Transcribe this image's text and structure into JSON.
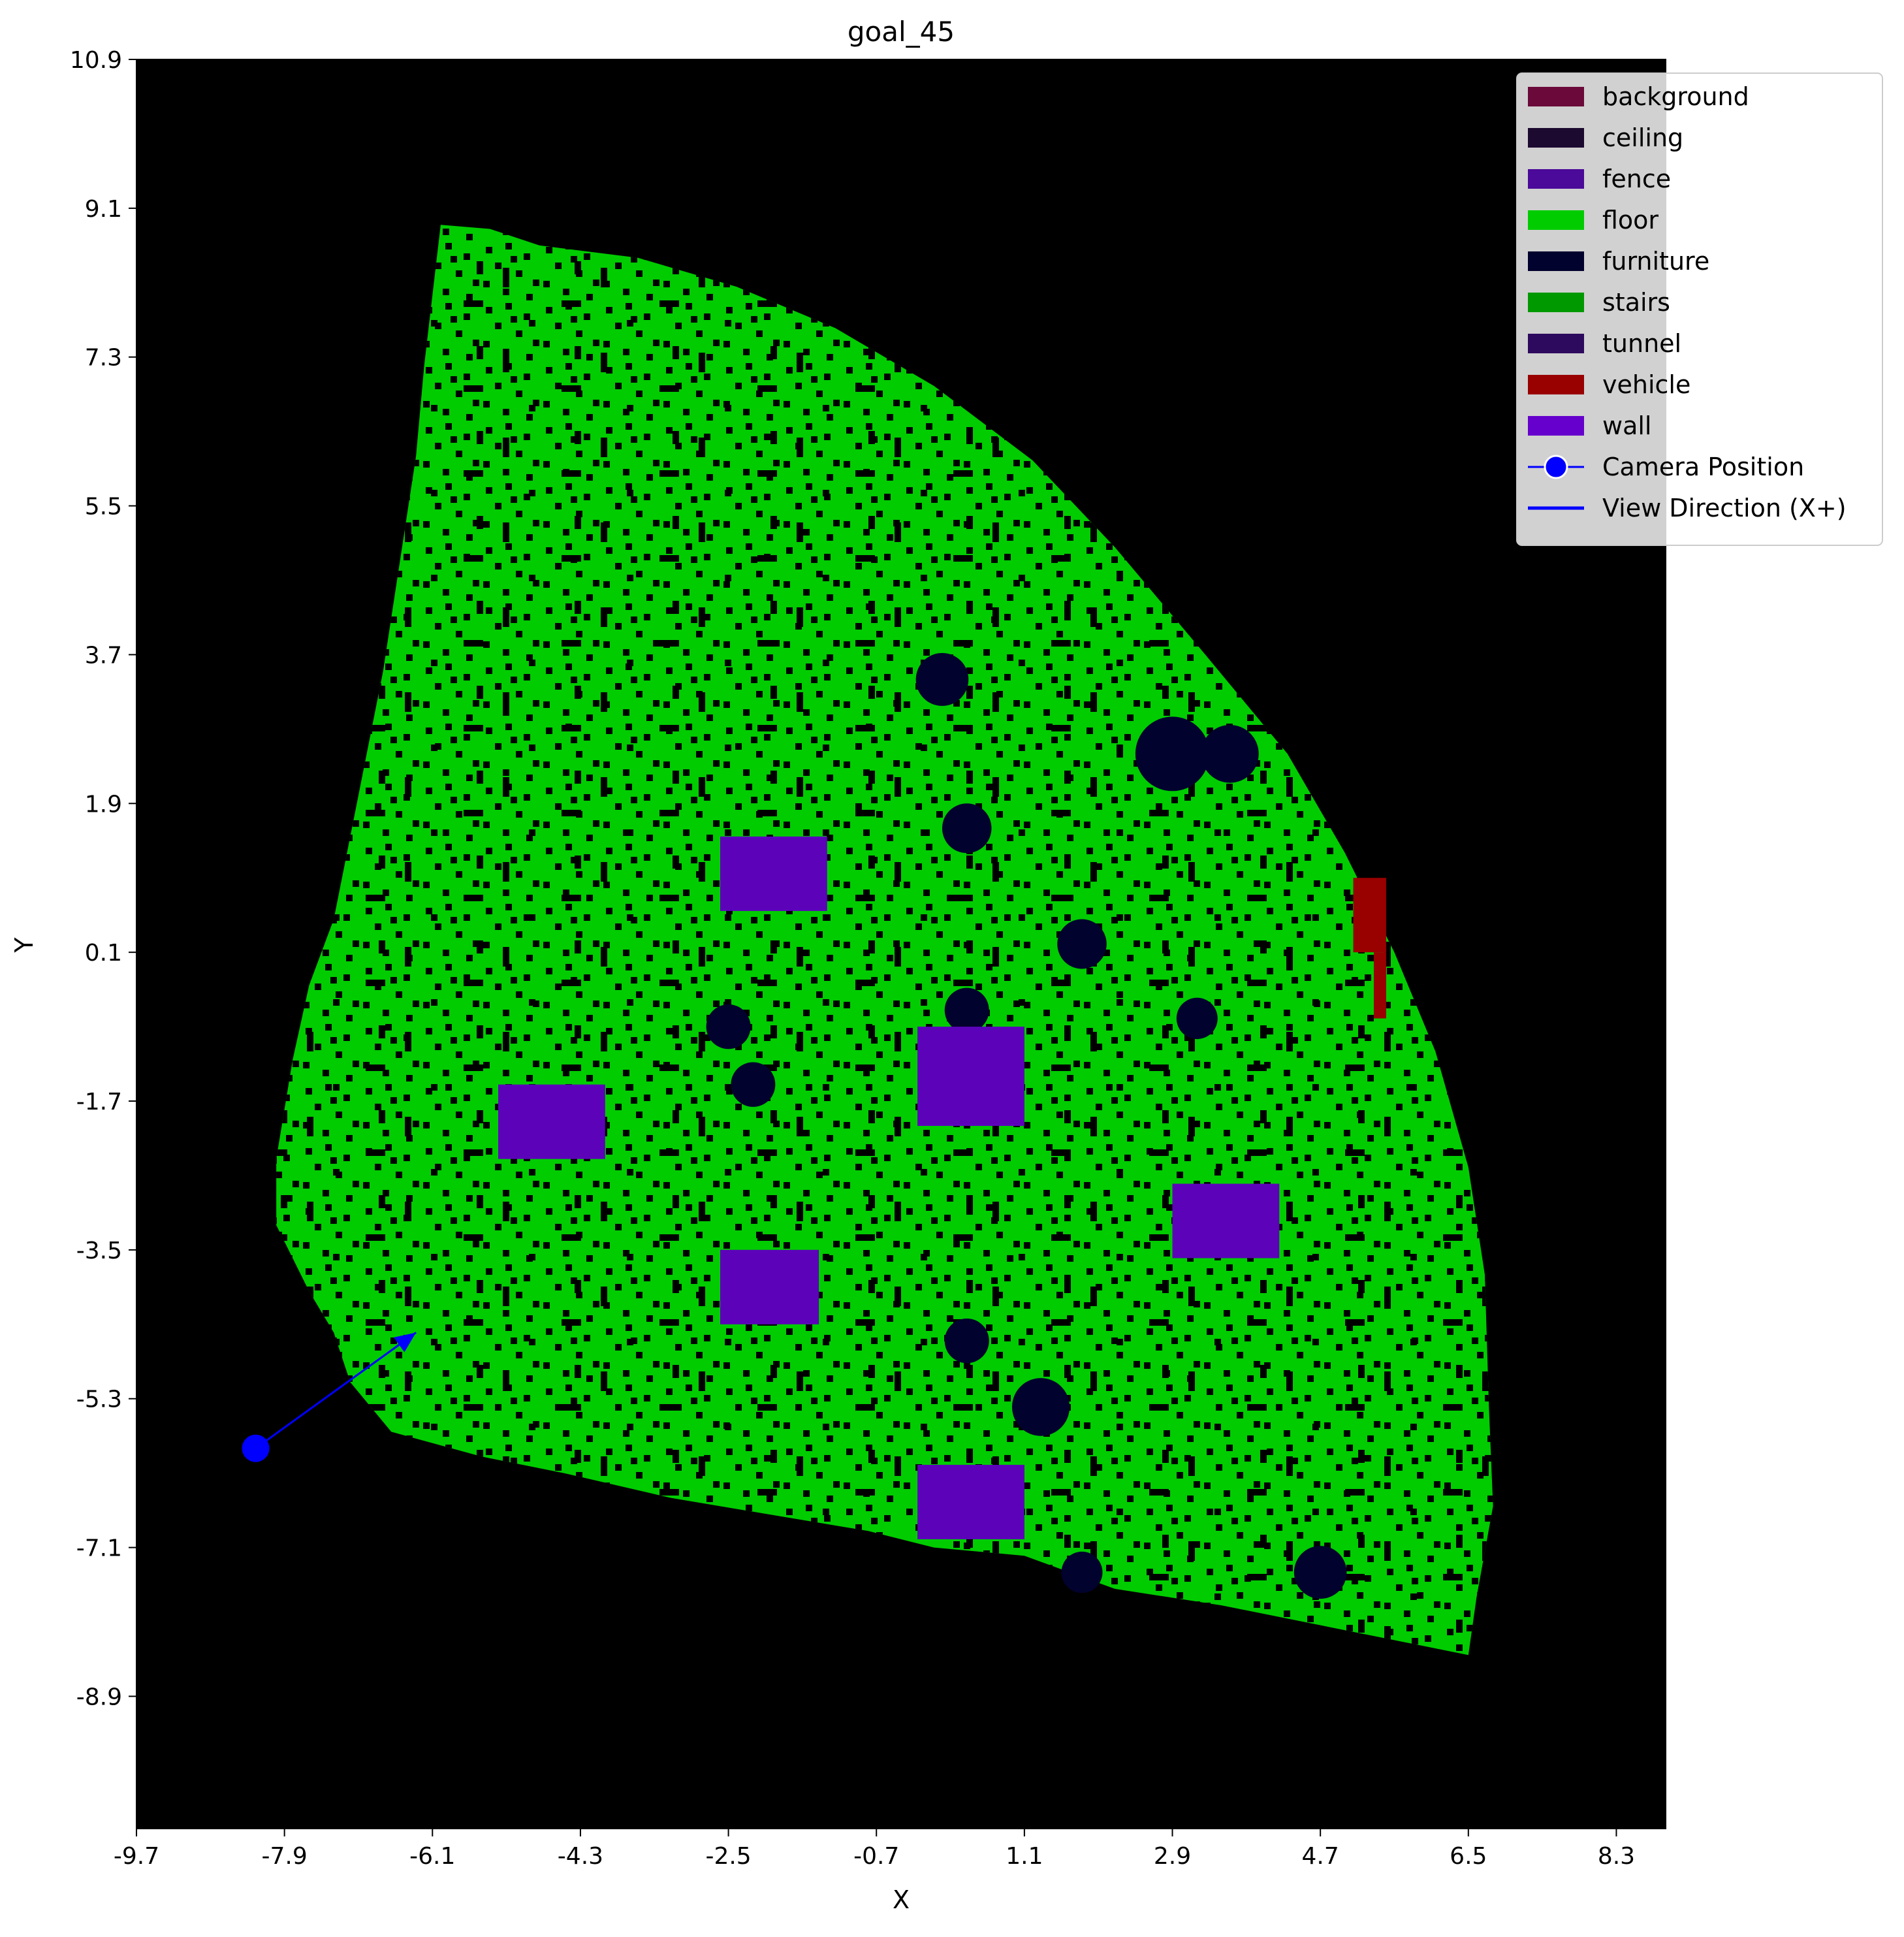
{
  "chart_data": {
    "type": "heatmap",
    "title": "goal_45",
    "xlabel": "X",
    "ylabel": "Y",
    "xlim": [
      -9.7,
      8.9
    ],
    "ylim": [
      -10.5,
      10.9
    ],
    "xticks": [
      -9.7,
      -7.9,
      -6.1,
      -4.3,
      -2.5,
      -0.7,
      1.1,
      2.9,
      4.7,
      6.5,
      8.3
    ],
    "yticks": [
      10.9,
      9.1,
      7.3,
      5.5,
      3.7,
      1.9,
      0.1,
      -1.7,
      -3.5,
      -5.3,
      -7.1,
      -8.9
    ],
    "xtick_labels": [
      "-9.7",
      "-7.9",
      "-6.1",
      "-4.3",
      "-2.5",
      "-0.7",
      "1.1",
      "2.9",
      "4.7",
      "6.5",
      "8.3"
    ],
    "ytick_labels": [
      "10.9",
      "9.1",
      "7.3",
      "5.5",
      "3.7",
      "1.9",
      "0.1",
      "-1.7",
      "-3.5",
      "-5.3",
      "-7.1",
      "-8.9"
    ],
    "grid": false,
    "background_color": "#000000",
    "legend_position": "top-right",
    "categories": [
      {
        "name": "background",
        "color": "#6b0a3a"
      },
      {
        "name": "ceiling",
        "color": "#1c0a30"
      },
      {
        "name": "fence",
        "color": "#4b0a99"
      },
      {
        "name": "floor",
        "color": "#00cc00"
      },
      {
        "name": "furniture",
        "color": "#02022e"
      },
      {
        "name": "stairs",
        "color": "#009900"
      },
      {
        "name": "tunnel",
        "color": "#2e0a5e"
      },
      {
        "name": "vehicle",
        "color": "#990000"
      },
      {
        "name": "wall",
        "color": "#6600cc"
      }
    ],
    "floor_region_outline": [
      [
        -6.0,
        8.9
      ],
      [
        -5.4,
        8.85
      ],
      [
        -4.8,
        8.65
      ],
      [
        -3.6,
        8.5
      ],
      [
        -2.4,
        8.15
      ],
      [
        -1.2,
        7.65
      ],
      [
        0.0,
        6.95
      ],
      [
        1.2,
        6.05
      ],
      [
        2.2,
        5.0
      ],
      [
        3.3,
        3.7
      ],
      [
        4.3,
        2.5
      ],
      [
        5.0,
        1.3
      ],
      [
        5.6,
        0.1
      ],
      [
        6.1,
        -1.1
      ],
      [
        6.5,
        -2.5
      ],
      [
        6.7,
        -3.8
      ],
      [
        6.75,
        -5.4
      ],
      [
        6.8,
        -6.6
      ],
      [
        6.6,
        -7.7
      ],
      [
        6.5,
        -8.4
      ],
      [
        5.0,
        -8.1
      ],
      [
        3.5,
        -7.8
      ],
      [
        2.2,
        -7.6
      ],
      [
        1.1,
        -7.2
      ],
      [
        0.0,
        -7.1
      ],
      [
        -0.8,
        -6.9
      ],
      [
        -2.0,
        -6.7
      ],
      [
        -3.2,
        -6.5
      ],
      [
        -4.5,
        -6.2
      ],
      [
        -5.5,
        -6.0
      ],
      [
        -6.6,
        -5.7
      ],
      [
        -7.1,
        -5.1
      ],
      [
        -7.3,
        -4.5
      ],
      [
        -7.6,
        -4.0
      ],
      [
        -8.0,
        -3.2
      ],
      [
        -8.0,
        -2.4
      ],
      [
        -7.8,
        -1.2
      ],
      [
        -7.6,
        -0.3
      ],
      [
        -7.3,
        0.5
      ],
      [
        -7.0,
        2.0
      ],
      [
        -6.7,
        3.5
      ],
      [
        -6.5,
        4.8
      ],
      [
        -6.3,
        6.1
      ],
      [
        -6.2,
        7.2
      ]
    ],
    "wall_regions": [
      {
        "x0": -2.6,
        "x1": -1.3,
        "y0": 0.6,
        "y1": 1.5
      },
      {
        "x0": -0.2,
        "x1": 1.1,
        "y0": -2.0,
        "y1": -0.8
      },
      {
        "x0": -5.3,
        "x1": -4.0,
        "y0": -2.4,
        "y1": -1.5
      },
      {
        "x0": -2.6,
        "x1": -1.4,
        "y0": -4.4,
        "y1": -3.5
      },
      {
        "x0": 2.9,
        "x1": 4.2,
        "y0": -3.6,
        "y1": -2.7
      },
      {
        "x0": -0.2,
        "x1": 1.1,
        "y0": -7.0,
        "y1": -6.1
      }
    ],
    "furniture_regions": [
      {
        "cx": 0.1,
        "cy": 3.4,
        "r": 0.32
      },
      {
        "cx": 2.9,
        "cy": 2.5,
        "r": 0.45
      },
      {
        "cx": 3.6,
        "cy": 2.5,
        "r": 0.35
      },
      {
        "cx": 0.4,
        "cy": 1.6,
        "r": 0.3
      },
      {
        "cx": 1.8,
        "cy": 0.2,
        "r": 0.3
      },
      {
        "cx": 0.4,
        "cy": -0.6,
        "r": 0.27
      },
      {
        "cx": -2.5,
        "cy": -0.8,
        "r": 0.27
      },
      {
        "cx": -2.2,
        "cy": -1.5,
        "r": 0.27
      },
      {
        "cx": 3.2,
        "cy": -0.7,
        "r": 0.25
      },
      {
        "cx": 0.4,
        "cy": -4.6,
        "r": 0.27
      },
      {
        "cx": 1.3,
        "cy": -5.4,
        "r": 0.35
      },
      {
        "cx": 1.8,
        "cy": -7.4,
        "r": 0.25
      },
      {
        "cx": 4.7,
        "cy": -7.4,
        "r": 0.32
      }
    ],
    "vehicle_regions": [
      {
        "x0": 5.1,
        "x1": 5.5,
        "y0": 0.1,
        "y1": 1.0
      },
      {
        "x0": 5.35,
        "x1": 5.5,
        "y0": -0.7,
        "y1": 0.1
      }
    ],
    "camera": {
      "label": "Camera Position",
      "x": -8.25,
      "y": -5.9,
      "color": "#0000ff"
    },
    "view_direction": {
      "label": "View Direction (X+)",
      "x_end": -6.3,
      "y_end": -4.5,
      "color": "#0000ff"
    }
  }
}
